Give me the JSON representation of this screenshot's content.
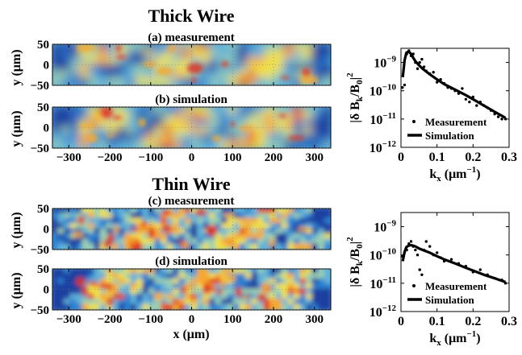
{
  "figure": {
    "groups": [
      {
        "title": "Thick Wire",
        "panels": [
          {
            "label": "(a) measurement",
            "seed": 11
          },
          {
            "label": "(b) simulation",
            "seed": 23
          }
        ]
      },
      {
        "title": "Thin Wire",
        "panels": [
          {
            "label": "(c) measurement",
            "seed": 37
          },
          {
            "label": "(d) simulation",
            "seed": 53
          }
        ]
      }
    ],
    "map_ylabel": "y (μm)",
    "map_xlabel": "x (μm)",
    "map_xticks": [
      -300,
      -200,
      -100,
      0,
      100,
      200,
      300
    ],
    "map_yticks": [
      50,
      0,
      -50
    ],
    "map_xlim": [
      -340,
      340
    ],
    "map_ylim": [
      -50,
      50
    ],
    "colormap": [
      "#1f3fa0",
      "#2c7fd0",
      "#5fb0d8",
      "#9bd0b0",
      "#f0e04a",
      "#f6a92e",
      "#e2331f"
    ]
  },
  "chart_data": [
    {
      "type": "line",
      "panel": "thick-wire-spectrum",
      "ylabel": "|δ B_k/B_0|^2",
      "xlabel": "k_x (μm^-1)",
      "xlim": [
        0,
        0.3
      ],
      "ylim_log10": [
        -12,
        -8.5
      ],
      "yscale": "log",
      "xticks": [
        "0",
        "0.1",
        "0.2",
        "0.3"
      ],
      "ytick_exponents": [
        -9,
        -10,
        -11,
        -12
      ],
      "legend": {
        "placement": "bottom-right",
        "entries": [
          "Measurement",
          "Simulation"
        ]
      },
      "series": [
        {
          "name": "Measurement",
          "style": "dots",
          "x": [
            0.004,
            0.01,
            0.016,
            0.022,
            0.028,
            0.034,
            0.04,
            0.046,
            0.052,
            0.058,
            0.064,
            0.07,
            0.08,
            0.09,
            0.1,
            0.11,
            0.12,
            0.13,
            0.14,
            0.15,
            0.16,
            0.17,
            0.18,
            0.19,
            0.2,
            0.21,
            0.22,
            0.23,
            0.24,
            0.25,
            0.26,
            0.27,
            0.28,
            0.29
          ],
          "y": [
            1.3e-10,
            1.6e-10,
            2e-09,
            2.6e-09,
            1.7e-09,
            2e-09,
            1e-09,
            6e-10,
            1e-09,
            1.3e-09,
            7e-10,
            5e-10,
            4e-10,
            4.5e-10,
            2e-10,
            2.5e-10,
            1.8e-10,
            1.3e-10,
            1.2e-10,
            1e-10,
            8e-11,
            1.2e-10,
            5e-11,
            4e-11,
            6e-11,
            3e-11,
            4e-11,
            3e-11,
            2.5e-11,
            2e-11,
            1.5e-11,
            1.2e-11,
            1e-11,
            1e-11
          ]
        },
        {
          "name": "Simulation",
          "style": "line",
          "x": [
            0.005,
            0.01,
            0.015,
            0.02,
            0.025,
            0.03,
            0.035,
            0.04,
            0.05,
            0.06,
            0.08,
            0.1,
            0.12,
            0.15,
            0.18,
            0.2,
            0.23,
            0.26,
            0.29
          ],
          "y": [
            3e-10,
            1.2e-09,
            2.2e-09,
            2.4e-09,
            2.2e-09,
            1.8e-09,
            1.4e-09,
            1.1e-09,
            8e-10,
            6e-10,
            3.8e-10,
            2.5e-10,
            1.7e-10,
            1.1e-10,
            7e-11,
            5e-11,
            3e-11,
            1.8e-11,
            1.1e-11
          ]
        }
      ]
    },
    {
      "type": "line",
      "panel": "thin-wire-spectrum",
      "ylabel": "|δ B_k/B_0|^2",
      "xlabel": "k_x (μm^-1)",
      "xlim": [
        0,
        0.3
      ],
      "ylim_log10": [
        -12,
        -8.5
      ],
      "yscale": "log",
      "xticks": [
        "0",
        "0.1",
        "0.2",
        "0.3"
      ],
      "ytick_exponents": [
        -9,
        -10,
        -11,
        -12
      ],
      "legend": {
        "placement": "bottom-right",
        "entries": [
          "Measurement",
          "Simulation"
        ]
      },
      "series": [
        {
          "name": "Measurement",
          "style": "dots",
          "x": [
            0.004,
            0.01,
            0.016,
            0.022,
            0.028,
            0.034,
            0.04,
            0.046,
            0.052,
            0.058,
            0.064,
            0.07,
            0.08,
            0.09,
            0.1,
            0.11,
            0.12,
            0.14,
            0.16,
            0.18,
            0.2,
            0.22,
            0.24,
            0.26,
            0.28,
            0.29
          ],
          "y": [
            9e-11,
            1.2e-10,
            1.5e-10,
            2.5e-10,
            3e-10,
            2e-10,
            1.5e-10,
            1e-10,
            3e-11,
            2e-11,
            1.5e-10,
            3e-10,
            2e-10,
            1e-10,
            1.2e-10,
            8e-11,
            6e-11,
            7e-11,
            5e-11,
            4e-11,
            2.5e-11,
            3e-11,
            2e-11,
            1.5e-11,
            1.3e-11,
            1e-11
          ]
        },
        {
          "name": "Simulation",
          "style": "line",
          "x": [
            0.005,
            0.01,
            0.015,
            0.02,
            0.025,
            0.03,
            0.04,
            0.05,
            0.06,
            0.08,
            0.1,
            0.12,
            0.15,
            0.18,
            0.2,
            0.23,
            0.26,
            0.29
          ],
          "y": [
            6e-11,
            1.3e-10,
            1.9e-10,
            2.1e-10,
            2.2e-10,
            2.2e-10,
            2e-10,
            1.7e-10,
            1.5e-10,
            1.2e-10,
            9e-11,
            7e-11,
            5e-11,
            3.5e-11,
            2.8e-11,
            2e-11,
            1.5e-11,
            1.1e-11
          ]
        }
      ]
    }
  ]
}
